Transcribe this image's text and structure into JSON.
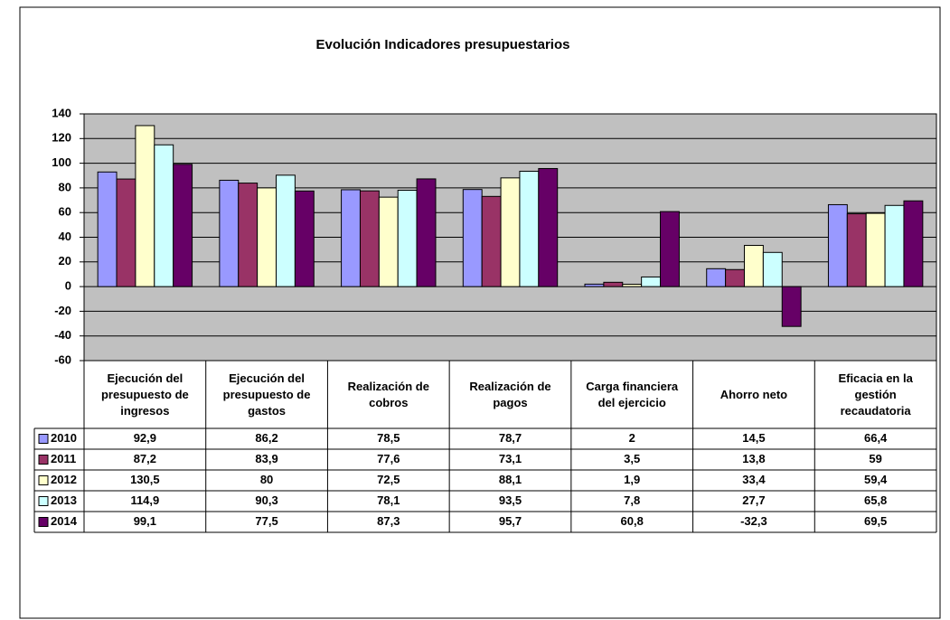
{
  "chart_data": {
    "type": "bar",
    "title": "Evolución Indicadores presupuestarios",
    "categories": [
      "Ejecución  del presupuesto de ingresos",
      "Ejecución del presupuesto de gastos",
      "Realización de cobros",
      "Realización de pagos",
      "Carga financiera del ejercicio",
      "Ahorro neto",
      "Eficacia en la gestión recaudatoria"
    ],
    "series": [
      {
        "name": "2010",
        "color": "#9999ff",
        "values": [
          92.9,
          86.2,
          78.5,
          78.7,
          2,
          14.5,
          66.4
        ],
        "value_labels": [
          "92,9",
          "86,2",
          "78,5",
          "78,7",
          "2",
          "14,5",
          "66,4"
        ]
      },
      {
        "name": "2011",
        "color": "#993366",
        "values": [
          87.2,
          83.9,
          77.6,
          73.1,
          3.5,
          13.8,
          59
        ],
        "value_labels": [
          "87,2",
          "83,9",
          "77,6",
          "73,1",
          "3,5",
          "13,8",
          "59"
        ]
      },
      {
        "name": "2012",
        "color": "#ffffcc",
        "values": [
          130.5,
          80,
          72.5,
          88.1,
          1.9,
          33.4,
          59.4
        ],
        "value_labels": [
          "130,5",
          "80",
          "72,5",
          "88,1",
          "1,9",
          "33,4",
          "59,4"
        ]
      },
      {
        "name": "2013",
        "color": "#ccffff",
        "values": [
          114.9,
          90.3,
          78.1,
          93.5,
          7.8,
          27.7,
          65.8
        ],
        "value_labels": [
          "114,9",
          "90,3",
          "78,1",
          "93,5",
          "7,8",
          "27,7",
          "65,8"
        ]
      },
      {
        "name": "2014",
        "color": "#660066",
        "values": [
          99.1,
          77.5,
          87.3,
          95.7,
          60.8,
          -32.3,
          69.5
        ],
        "value_labels": [
          "99,1",
          "77,5",
          "87,3",
          "95,7",
          "60,8",
          "-32,3",
          "69,5"
        ]
      }
    ],
    "ylim": [
      -60,
      140
    ],
    "yticks": [
      -60,
      -40,
      -20,
      0,
      20,
      40,
      60,
      80,
      100,
      120,
      140
    ],
    "grid": true,
    "plot_background": "#c0c0c0"
  }
}
